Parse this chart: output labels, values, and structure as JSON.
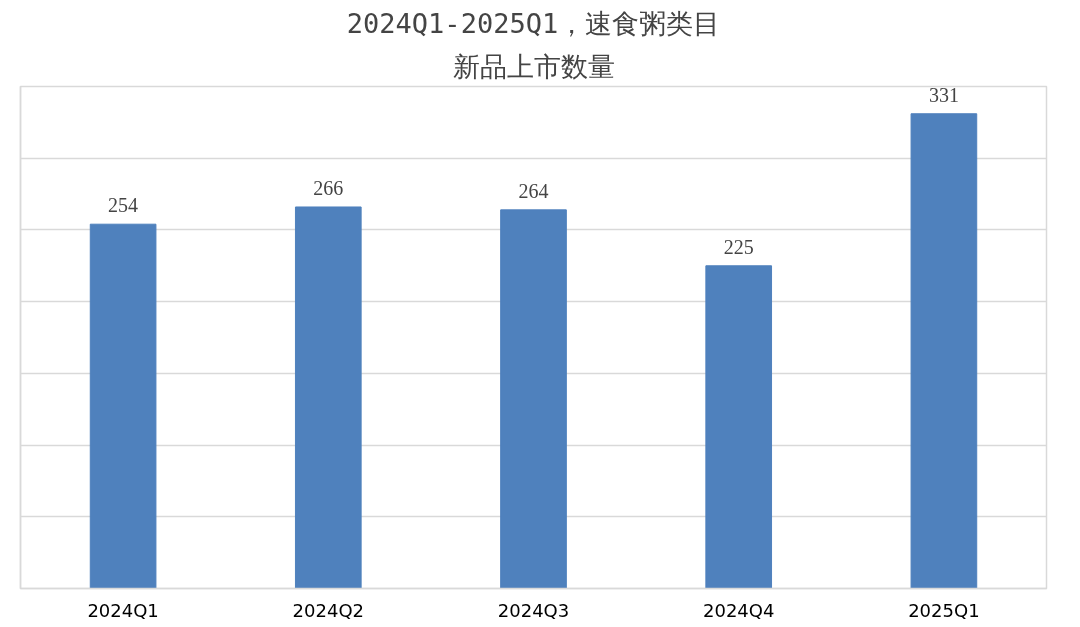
{
  "chart_data": {
    "type": "bar",
    "title": "2024Q1-2025Q1，速食粥类目",
    "subtitle": "新品上市数量",
    "categories": [
      "2024Q1",
      "2024Q2",
      "2024Q3",
      "2024Q4",
      "2025Q1"
    ],
    "values": [
      254,
      266,
      264,
      225,
      331
    ],
    "color": "#4f81bd",
    "ylim": [
      0,
      350
    ],
    "yticks": [
      {
        "value": 0,
        "label": null
      },
      {
        "value": 50,
        "label": null
      },
      {
        "value": 100,
        "label": null
      },
      {
        "value": 150,
        "label": null
      },
      {
        "value": 200,
        "label": null
      },
      {
        "value": 250,
        "label": null
      },
      {
        "value": 300,
        "label": null
      }
    ],
    "grid": "y",
    "tick_labels": "x",
    "data_labels": true
  }
}
